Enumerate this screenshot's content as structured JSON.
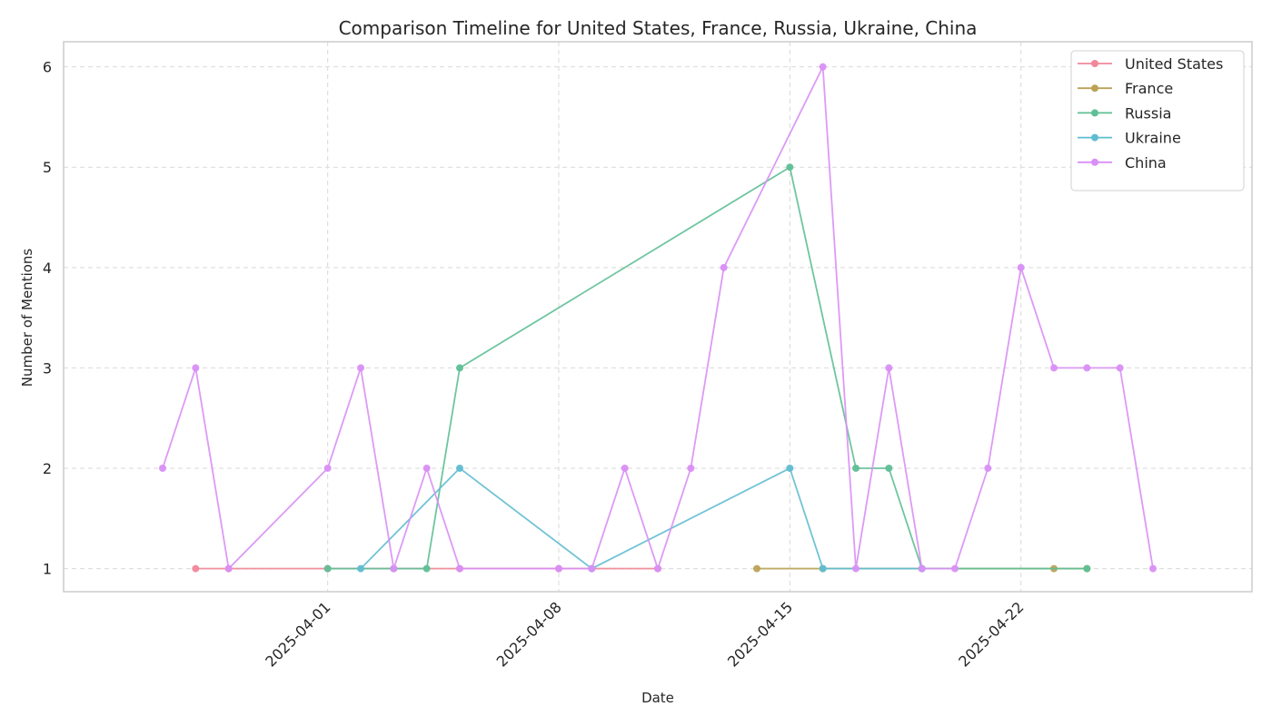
{
  "chart_data": {
    "type": "line",
    "title": "Comparison Timeline for United States, France, Russia, Ukraine, China",
    "xlabel": "Date",
    "ylabel": "Number of Mentions",
    "xlim": [
      "2025-03-24",
      "2025-04-29"
    ],
    "ylim": [
      0.77,
      6.25
    ],
    "x_ticks": [
      "2025-04-01",
      "2025-04-08",
      "2025-04-15",
      "2025-04-22"
    ],
    "y_ticks": [
      1,
      2,
      3,
      4,
      5,
      6
    ],
    "grid": true,
    "legend_position": "top-right",
    "series": [
      {
        "name": "United States",
        "color": "#f0889a",
        "points": [
          [
            "2025-03-28",
            1
          ],
          [
            "2025-03-29",
            1
          ],
          [
            "2025-04-01",
            1
          ],
          [
            "2025-04-03",
            1
          ],
          [
            "2025-04-05",
            1
          ],
          [
            "2025-04-08",
            1
          ],
          [
            "2025-04-09",
            1
          ],
          [
            "2025-04-11",
            1
          ]
        ]
      },
      {
        "name": "France",
        "color": "#bba257",
        "points": [
          [
            "2025-04-14",
            1
          ],
          [
            "2025-04-16",
            1
          ],
          [
            "2025-04-23",
            1
          ],
          [
            "2025-04-24",
            1
          ]
        ]
      },
      {
        "name": "Russia",
        "color": "#5fbf96",
        "points": [
          [
            "2025-04-01",
            1
          ],
          [
            "2025-04-03",
            1
          ],
          [
            "2025-04-04",
            1
          ],
          [
            "2025-04-05",
            3
          ],
          [
            "2025-04-15",
            5
          ],
          [
            "2025-04-17",
            2
          ],
          [
            "2025-04-18",
            2
          ],
          [
            "2025-04-19",
            1
          ],
          [
            "2025-04-24",
            1
          ]
        ]
      },
      {
        "name": "Ukraine",
        "color": "#60bcd1",
        "points": [
          [
            "2025-04-02",
            1
          ],
          [
            "2025-04-05",
            2
          ],
          [
            "2025-04-09",
            1
          ],
          [
            "2025-04-15",
            2
          ],
          [
            "2025-04-16",
            1
          ],
          [
            "2025-04-19",
            1
          ]
        ]
      },
      {
        "name": "China",
        "color": "#d98ff5",
        "points": [
          [
            "2025-03-27",
            2
          ],
          [
            "2025-03-28",
            3
          ],
          [
            "2025-03-29",
            1
          ],
          [
            "2025-04-01",
            2
          ],
          [
            "2025-04-02",
            3
          ],
          [
            "2025-04-03",
            1
          ],
          [
            "2025-04-04",
            2
          ],
          [
            "2025-04-05",
            1
          ],
          [
            "2025-04-08",
            1
          ],
          [
            "2025-04-09",
            1
          ],
          [
            "2025-04-10",
            2
          ],
          [
            "2025-04-11",
            1
          ],
          [
            "2025-04-12",
            2
          ],
          [
            "2025-04-13",
            4
          ],
          [
            "2025-04-16",
            6
          ],
          [
            "2025-04-17",
            1
          ],
          [
            "2025-04-18",
            3
          ],
          [
            "2025-04-19",
            1
          ],
          [
            "2025-04-20",
            1
          ],
          [
            "2025-04-21",
            2
          ],
          [
            "2025-04-22",
            4
          ],
          [
            "2025-04-23",
            3
          ],
          [
            "2025-04-24",
            3
          ],
          [
            "2025-04-25",
            3
          ],
          [
            "2025-04-26",
            1
          ]
        ]
      }
    ]
  }
}
